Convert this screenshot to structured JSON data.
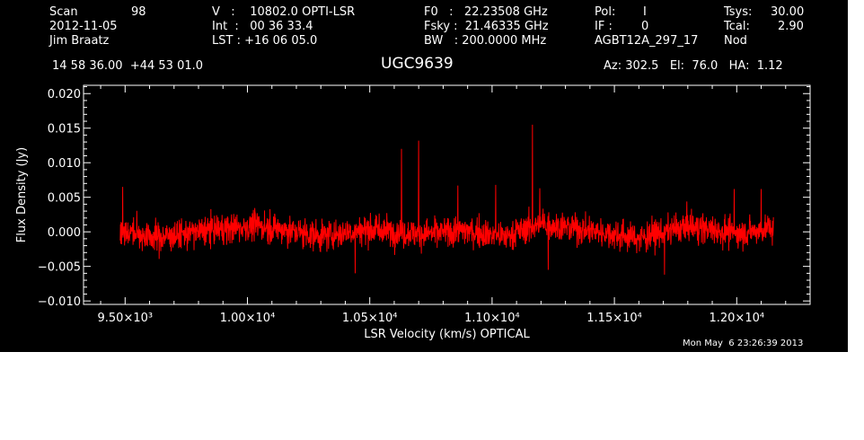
{
  "header": {
    "scan_label": "Scan",
    "scan_value": "98",
    "obs_date": "2012-11-05",
    "observer": "Jim Braatz",
    "v_line": "V   :    10802.0 OPTI-LSR",
    "int_line": "Int  :   00 36 33.4",
    "lst_line": "LST : +16 06 05.0",
    "f0_line": "F0   :   22.23508 GHz",
    "fsky_line": "Fsky :  21.46335 GHz",
    "bw_line": "BW   : 200.0000 MHz",
    "pol_label": "Pol:",
    "pol_value": "I",
    "if_label": "IF :",
    "if_value": "0",
    "project": "AGBT12A_297_17",
    "tsys_label": "Tsys:",
    "tsys_value": "30.00",
    "tcal_label": "Tcal:",
    "tcal_value": "2.90",
    "mode": "Nod",
    "coords": "14 58 36.00  +44 53 01.0",
    "source": "UGC9639",
    "az_el_ha": "Az: 302.5   El:  76.0   HA:  1.12",
    "timestamp": "Mon May  6 23:26:39 2013"
  },
  "chart_data": {
    "type": "line",
    "xlabel": "LSR Velocity (km/s) OPTICAL",
    "ylabel": "Flux Density (Jy)",
    "xlim": [
      9330,
      12300
    ],
    "ylim": [
      -0.0105,
      0.0212
    ],
    "x_ticks": [
      {
        "value": 9500,
        "label": "9.50×10³"
      },
      {
        "value": 10000,
        "label": "1.00×10⁴"
      },
      {
        "value": 10500,
        "label": "1.05×10⁴"
      },
      {
        "value": 11000,
        "label": "1.10×10⁴"
      },
      {
        "value": 11500,
        "label": "1.15×10⁴"
      },
      {
        "value": 12000,
        "label": "1.20×10⁴"
      }
    ],
    "y_ticks": [
      {
        "value": 0.02,
        "label": "0.020"
      },
      {
        "value": 0.015,
        "label": "0.015"
      },
      {
        "value": 0.01,
        "label": "0.010"
      },
      {
        "value": 0.005,
        "label": "0.005"
      },
      {
        "value": 0.0,
        "label": "0.000"
      },
      {
        "value": -0.005,
        "label": "−0.005"
      },
      {
        "value": -0.01,
        "label": "−0.010"
      }
    ],
    "series": [
      {
        "color": "#ff0000",
        "x_range": [
          9480,
          12150
        ],
        "baseline": 0.0,
        "noise_rms": 0.0018,
        "baseline_ripple": [
          {
            "x": 9480,
            "y": 0.0
          },
          {
            "x": 9650,
            "y": -0.0008
          },
          {
            "x": 9850,
            "y": 0.0003
          },
          {
            "x": 10050,
            "y": 0.0009
          },
          {
            "x": 10300,
            "y": -0.0006
          },
          {
            "x": 10500,
            "y": 0.0004
          },
          {
            "x": 10700,
            "y": -0.0003
          },
          {
            "x": 10900,
            "y": 0.0002
          },
          {
            "x": 11050,
            "y": -0.0007
          },
          {
            "x": 11200,
            "y": 0.0012
          },
          {
            "x": 11400,
            "y": 0.0002
          },
          {
            "x": 11600,
            "y": -0.0009
          },
          {
            "x": 11800,
            "y": 0.0008
          },
          {
            "x": 12000,
            "y": -0.0002
          },
          {
            "x": 12150,
            "y": 0.0006
          }
        ],
        "spikes": [
          {
            "x": 9490,
            "y": 0.0065
          },
          {
            "x": 10630,
            "y": 0.012
          },
          {
            "x": 10700,
            "y": 0.0132
          },
          {
            "x": 10860,
            "y": 0.0067
          },
          {
            "x": 11015,
            "y": 0.0068
          },
          {
            "x": 11165,
            "y": 0.0155
          },
          {
            "x": 11195,
            "y": 0.0063
          },
          {
            "x": 11990,
            "y": 0.0062
          },
          {
            "x": 12100,
            "y": 0.0062
          },
          {
            "x": 11705,
            "y": -0.0062
          },
          {
            "x": 10440,
            "y": -0.006
          },
          {
            "x": 11230,
            "y": -0.0055
          }
        ]
      }
    ]
  }
}
